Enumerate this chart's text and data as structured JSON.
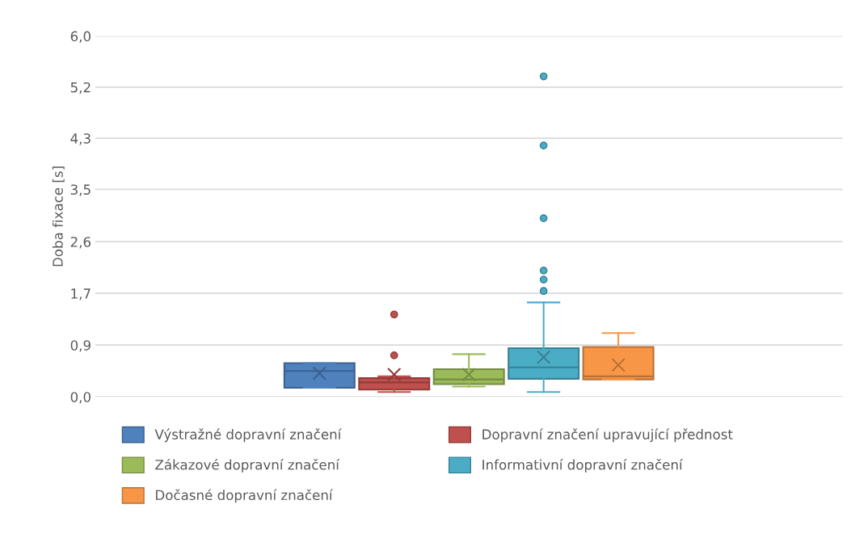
{
  "chart_data": {
    "type": "box",
    "ylabel": "Doba fixace [s]",
    "categories": [
      null
    ],
    "series": [
      {
        "name": "Výstražné dopravní značení",
        "color": "#4f81bd",
        "boxes": [
          {
            "low": 0.15,
            "q1": 0.15,
            "median": 0.43,
            "q3": 0.56,
            "high": 0.56,
            "mean": 0.39
          }
        ]
      },
      {
        "name": "Dopravní značení upravující přednost",
        "color": "#c0504d",
        "boxes": [
          {
            "low": 0.08,
            "q1": 0.12,
            "median": 0.24,
            "q3": 0.31,
            "high": 0.34,
            "mean": 0.37,
            "outliers": [
              0.69,
              1.37
            ]
          }
        ]
      },
      {
        "name": "Zákazové dopravní značení",
        "color": "#9bbb59",
        "boxes": [
          {
            "low": 0.17,
            "q1": 0.21,
            "median": 0.29,
            "q3": 0.46,
            "high": 0.71,
            "mean": 0.37
          }
        ]
      },
      {
        "name": "Informativní dopravní značení",
        "color": "#4bacc6",
        "boxes": [
          {
            "low": 0.08,
            "q1": 0.3,
            "median": 0.49,
            "q3": 0.81,
            "high": 1.57,
            "mean": 0.66,
            "outliers": [
              1.76,
              1.95,
              2.1,
              2.97,
              4.18,
              5.33
            ]
          }
        ]
      },
      {
        "name": "Dočasné dopravní značení",
        "color": "#f79646",
        "boxes": [
          {
            "low": 0.29,
            "q1": 0.29,
            "median": 0.34,
            "q3": 0.83,
            "high": 1.06,
            "mean": 0.53
          }
        ]
      }
    ],
    "ylim": [
      0,
      6
    ],
    "yticks": [
      {
        "value": 0,
        "label": "0,0"
      },
      {
        "value": 0.86,
        "label": "0,9"
      },
      {
        "value": 1.72,
        "label": "1,7"
      },
      {
        "value": 2.58,
        "label": "2,6"
      },
      {
        "value": 3.45,
        "label": "3,5"
      },
      {
        "value": 4.3,
        "label": "4,3"
      },
      {
        "value": 5.15,
        "label": "5,2"
      },
      {
        "value": 6.0,
        "label": "6,0"
      }
    ],
    "grid": "y",
    "legend": "bottom",
    "tick_labels": "y"
  }
}
